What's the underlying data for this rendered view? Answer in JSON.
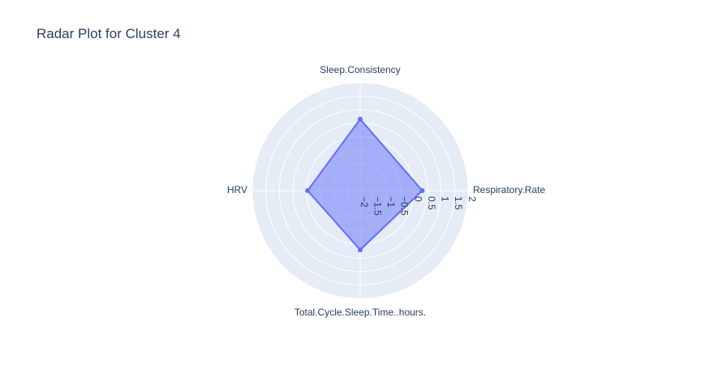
{
  "chart_data": {
    "type": "radar",
    "title": "Radar Plot for Cluster 4",
    "axes": [
      "Respiratory.Rate",
      "Sleep.Consistency",
      "HRV",
      "Total.Cycle.Sleep.Time..hours."
    ],
    "series": [
      {
        "values": [
          0.3,
          0.65,
          -0.05,
          0.2
        ]
      }
    ],
    "radial_range": [
      -2,
      2
    ],
    "radial_ticks": [
      -2,
      -1.5,
      -1,
      -0.5,
      0,
      0.5,
      1,
      1.5,
      2
    ],
    "radial_tick_labels": [
      "−2",
      "−1.5",
      "−1",
      "−0.5",
      "0",
      "0.5",
      "1",
      "1.5",
      "2"
    ],
    "colors": {
      "polar_bg": "#e5ecf6",
      "grid": "#ffffff",
      "series_line": "#636efa",
      "series_fill": "rgba(99,110,250,0.5)",
      "text": "#2a3f5f"
    }
  }
}
